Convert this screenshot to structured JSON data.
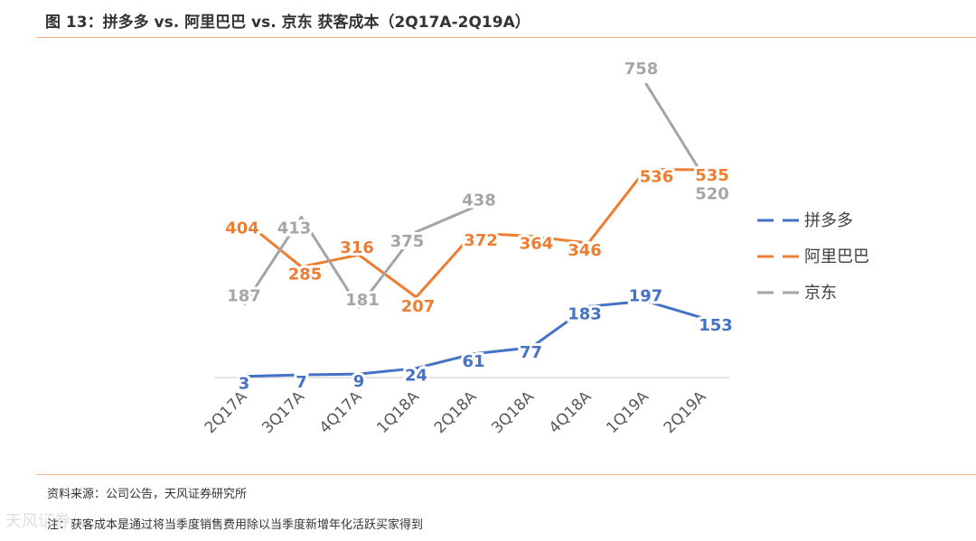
{
  "header": {
    "title": "图 13：拼多多 vs. 阿里巴巴 vs. 京东 获客成本（2Q17A-2Q19A）"
  },
  "footer": {
    "source": "资料来源：公司公告，天风证券研究所",
    "note": "注：获客成本是通过将当季度销售费用除以当季度新增年化活跃买家得到",
    "watermark": "天风证券"
  },
  "chart_data": {
    "type": "line",
    "title": "拼多多 vs. 阿里巴巴 vs. 京东 获客成本（2Q17A-2Q19A）",
    "categories": [
      "2Q17A",
      "3Q17A",
      "4Q17A",
      "1Q18A",
      "2Q18A",
      "3Q18A",
      "4Q18A",
      "1Q19A",
      "2Q19A"
    ],
    "series": [
      {
        "name": "拼多多",
        "color": "#4472C4",
        "values": [
          3,
          7,
          9,
          24,
          61,
          77,
          183,
          197,
          153
        ]
      },
      {
        "name": "阿里巴巴",
        "color": "#ED7D31",
        "values": [
          404,
          285,
          316,
          207,
          372,
          364,
          346,
          536,
          535
        ]
      },
      {
        "name": "京东",
        "color": "#A5A5A5",
        "values": [
          187,
          413,
          181,
          375,
          438,
          null,
          null,
          758,
          520
        ]
      }
    ],
    "xlabel": "",
    "ylabel": "",
    "ylim": [
      0,
      800
    ],
    "grid": false,
    "legend": "right"
  }
}
